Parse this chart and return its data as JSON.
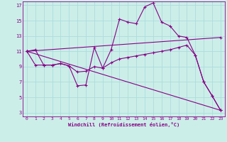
{
  "xlabel": "Windchill (Refroidissement éolien,°C)",
  "bg_color": "#cceee8",
  "grid_color": "#aadddd",
  "line_color": "#880088",
  "ylim": [
    2.5,
    17.5
  ],
  "xlim": [
    -0.5,
    23.5
  ],
  "yticks": [
    3,
    5,
    7,
    9,
    11,
    13,
    15,
    17
  ],
  "xticks": [
    0,
    1,
    2,
    3,
    4,
    5,
    6,
    7,
    8,
    9,
    10,
    11,
    12,
    13,
    14,
    15,
    16,
    17,
    18,
    19,
    20,
    21,
    22,
    23
  ],
  "line1": {
    "x": [
      0,
      1,
      2,
      3,
      4,
      5,
      6,
      7,
      8,
      9,
      10,
      11,
      12,
      13,
      14,
      15,
      16,
      17,
      18,
      19,
      20,
      21,
      22,
      23
    ],
    "y": [
      11.0,
      11.2,
      9.2,
      9.2,
      9.4,
      9.1,
      6.5,
      6.6,
      11.5,
      8.8,
      11.2,
      15.2,
      14.8,
      14.6,
      16.8,
      17.3,
      14.8,
      14.3,
      13.0,
      12.8,
      10.5,
      7.0,
      5.2,
      3.3
    ]
  },
  "line2": {
    "x": [
      0,
      1,
      2,
      3,
      4,
      5,
      6,
      7,
      8,
      9,
      10,
      11,
      12,
      13,
      14,
      15,
      16,
      17,
      18,
      19,
      20,
      21,
      22,
      23
    ],
    "y": [
      11.0,
      9.2,
      9.2,
      9.2,
      9.4,
      9.1,
      8.3,
      8.4,
      9.0,
      8.8,
      9.5,
      10.0,
      10.2,
      10.4,
      10.6,
      10.8,
      11.0,
      11.2,
      11.5,
      11.8,
      10.5,
      7.0,
      5.2,
      3.3
    ]
  },
  "line3": {
    "x": [
      0,
      23
    ],
    "y": [
      11.0,
      12.8
    ]
  },
  "line4": {
    "x": [
      0,
      23
    ],
    "y": [
      11.0,
      3.3
    ]
  }
}
